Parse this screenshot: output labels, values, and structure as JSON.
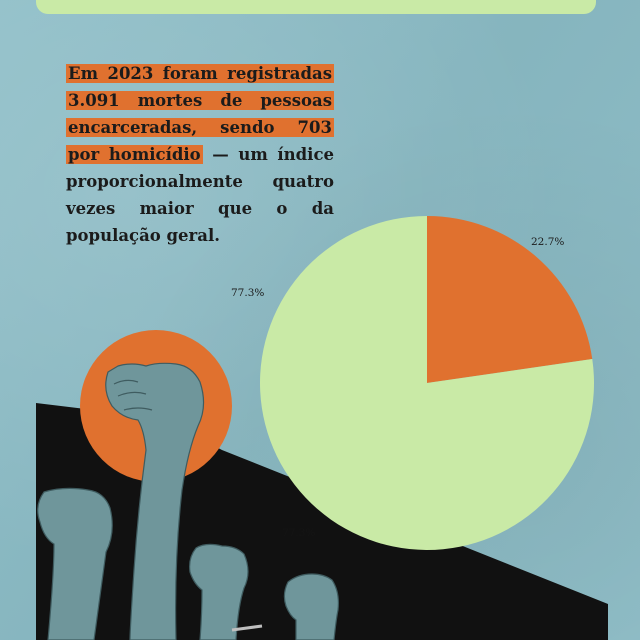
{
  "paragraph": {
    "highlight1": "Em 2023 foram registradas",
    "highlight2": "3.091 mortes de pessoas",
    "highlight3": "encarceradas, sendo 703",
    "highlight4": "por homicídio",
    "rest": " — um índice proporcionalmente quatro vezes maior que o da população geral."
  },
  "colors": {
    "background": "#8bbcc6",
    "accent_orange": "#e0712f",
    "accent_green": "#c9eaa6",
    "dark": "#111111"
  },
  "chart_data": {
    "type": "pie",
    "slices": [
      {
        "label": "22.7%",
        "value": 22.7,
        "color": "#e0712f"
      },
      {
        "label": "77.3%",
        "value": 77.3,
        "color": "#c9eaa6"
      }
    ],
    "labels": {
      "slice_small": "22.7%",
      "slice_large": "77.3%",
      "faint_duplicate": "77.3%"
    }
  },
  "illustration": {
    "icon": "raised-fists-icon"
  }
}
